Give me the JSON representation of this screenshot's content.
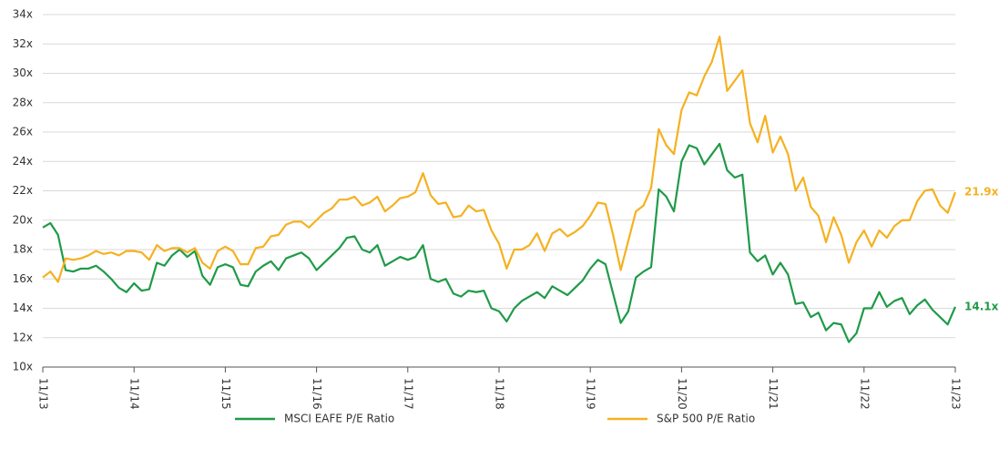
{
  "chart_data": {
    "type": "line",
    "categories": [
      "11/13",
      null,
      null,
      null,
      null,
      null,
      null,
      null,
      null,
      null,
      null,
      null,
      "11/14",
      null,
      null,
      null,
      null,
      null,
      null,
      null,
      null,
      null,
      null,
      null,
      "11/15",
      null,
      null,
      null,
      null,
      null,
      null,
      null,
      null,
      null,
      null,
      null,
      "11/16",
      null,
      null,
      null,
      null,
      null,
      null,
      null,
      null,
      null,
      null,
      null,
      "11/17",
      null,
      null,
      null,
      null,
      null,
      null,
      null,
      null,
      null,
      null,
      null,
      "11/18",
      null,
      null,
      null,
      null,
      null,
      null,
      null,
      null,
      null,
      null,
      null,
      "11/19",
      null,
      null,
      null,
      null,
      null,
      null,
      null,
      null,
      null,
      null,
      null,
      "11/20",
      null,
      null,
      null,
      null,
      null,
      null,
      null,
      null,
      null,
      null,
      null,
      "11/21",
      null,
      null,
      null,
      null,
      null,
      null,
      null,
      null,
      null,
      null,
      null,
      "11/22",
      null,
      null,
      null,
      null,
      null,
      null,
      null,
      null,
      null,
      null,
      null,
      "11/23"
    ],
    "series": [
      {
        "name": "MSCI EAFE P/E Ratio",
        "color": "#1f9a48",
        "values": [
          19.5,
          19.8,
          19.0,
          16.6,
          16.5,
          16.7,
          16.7,
          16.9,
          16.5,
          16.0,
          15.4,
          15.1,
          15.7,
          15.2,
          15.3,
          17.1,
          16.9,
          17.6,
          18.0,
          17.5,
          17.9,
          16.2,
          15.6,
          16.8,
          17.0,
          16.8,
          15.6,
          15.5,
          16.5,
          16.9,
          17.2,
          16.6,
          17.4,
          17.6,
          17.8,
          17.4,
          16.6,
          17.1,
          17.6,
          18.1,
          18.8,
          18.9,
          18.0,
          17.8,
          18.3,
          16.9,
          17.2,
          17.5,
          17.3,
          17.5,
          18.3,
          16.0,
          15.8,
          16.0,
          15.0,
          14.8,
          15.2,
          15.1,
          15.2,
          14.0,
          13.8,
          13.1,
          14.0,
          14.5,
          14.8,
          15.1,
          14.7,
          15.5,
          15.2,
          14.9,
          15.4,
          15.9,
          16.7,
          17.3,
          17.0,
          15.0,
          13.0,
          13.8,
          16.1,
          16.5,
          16.8,
          22.1,
          21.6,
          20.6,
          24.0,
          25.1,
          24.9,
          23.8,
          24.5,
          25.2,
          23.4,
          22.9,
          23.1,
          17.8,
          17.2,
          17.6,
          16.3,
          17.1,
          16.3,
          14.3,
          14.4,
          13.4,
          13.7,
          12.5,
          13.0,
          12.9,
          11.7,
          12.3,
          14.0,
          14.0,
          15.1,
          14.1,
          14.5,
          14.7,
          13.6,
          14.2,
          14.6,
          13.9,
          13.4,
          12.9,
          14.1
        ],
        "value_labels": [
          null,
          null,
          null,
          null,
          null,
          null,
          null,
          null,
          null,
          null,
          null,
          null,
          null,
          null,
          null,
          null,
          null,
          null,
          null,
          null,
          null,
          null,
          null,
          null,
          null,
          null,
          null,
          null,
          null,
          null,
          null,
          null,
          null,
          null,
          null,
          null,
          null,
          null,
          null,
          null,
          null,
          null,
          null,
          null,
          null,
          null,
          null,
          null,
          null,
          null,
          null,
          null,
          null,
          null,
          null,
          null,
          null,
          null,
          null,
          null,
          null,
          null,
          null,
          null,
          null,
          null,
          null,
          null,
          null,
          null,
          null,
          null,
          null,
          null,
          null,
          null,
          null,
          null,
          null,
          null,
          null,
          null,
          null,
          null,
          null,
          null,
          null,
          null,
          null,
          null,
          null,
          null,
          null,
          null,
          null,
          null,
          null,
          null,
          null,
          null,
          null,
          null,
          null,
          null,
          null,
          null,
          null,
          null,
          null,
          null,
          null,
          null,
          null,
          null,
          null,
          null,
          null,
          null,
          null,
          null,
          "14.1x"
        ]
      },
      {
        "name": "S&P 500 P/E Ratio",
        "color": "#f5b120",
        "values": [
          16.1,
          16.5,
          15.8,
          17.4,
          17.3,
          17.4,
          17.6,
          17.9,
          17.7,
          17.8,
          17.6,
          17.9,
          17.9,
          17.8,
          17.3,
          18.3,
          17.9,
          18.1,
          18.1,
          17.8,
          18.1,
          17.1,
          16.7,
          17.9,
          18.2,
          17.9,
          17.0,
          17.0,
          18.1,
          18.2,
          18.9,
          19.0,
          19.7,
          19.9,
          19.9,
          19.5,
          20.0,
          20.5,
          20.8,
          21.4,
          21.4,
          21.6,
          21.0,
          21.2,
          21.6,
          20.6,
          21.0,
          21.5,
          21.6,
          21.9,
          23.2,
          21.7,
          21.1,
          21.2,
          20.2,
          20.3,
          21.0,
          20.6,
          20.7,
          19.3,
          18.4,
          16.7,
          18.0,
          18.0,
          18.3,
          19.1,
          17.9,
          19.1,
          19.4,
          18.9,
          19.2,
          19.6,
          20.3,
          21.2,
          21.1,
          19.0,
          16.6,
          18.6,
          20.6,
          21.0,
          22.2,
          26.2,
          25.1,
          24.5,
          27.5,
          28.7,
          28.5,
          29.8,
          30.8,
          32.5,
          28.8,
          29.5,
          30.2,
          26.6,
          25.3,
          27.1,
          24.6,
          25.7,
          24.5,
          22.0,
          22.9,
          20.9,
          20.3,
          18.5,
          20.2,
          19.0,
          17.1,
          18.5,
          19.3,
          18.2,
          19.3,
          18.8,
          19.6,
          20.0,
          20.0,
          21.3,
          22.0,
          22.1,
          21.0,
          20.5,
          21.9
        ],
        "value_labels": [
          null,
          null,
          null,
          null,
          null,
          null,
          null,
          null,
          null,
          null,
          null,
          null,
          null,
          null,
          null,
          null,
          null,
          null,
          null,
          null,
          null,
          null,
          null,
          null,
          null,
          null,
          null,
          null,
          null,
          null,
          null,
          null,
          null,
          null,
          null,
          null,
          null,
          null,
          null,
          null,
          null,
          null,
          null,
          null,
          null,
          null,
          null,
          null,
          null,
          null,
          null,
          null,
          null,
          null,
          null,
          null,
          null,
          null,
          null,
          null,
          null,
          null,
          null,
          null,
          null,
          null,
          null,
          null,
          null,
          null,
          null,
          null,
          null,
          null,
          null,
          null,
          null,
          null,
          null,
          null,
          null,
          null,
          null,
          null,
          null,
          null,
          null,
          null,
          null,
          null,
          null,
          null,
          null,
          null,
          null,
          null,
          null,
          null,
          null,
          null,
          null,
          null,
          null,
          null,
          null,
          null,
          null,
          null,
          null,
          null,
          null,
          null,
          null,
          null,
          null,
          null,
          null,
          null,
          null,
          null,
          "21.9x"
        ]
      }
    ],
    "ylim": [
      10,
      34
    ],
    "yticks": [
      {
        "value": 10,
        "label": "10x"
      },
      {
        "value": 12,
        "label": "12x"
      },
      {
        "value": 14,
        "label": "14x"
      },
      {
        "value": 16,
        "label": "16x"
      },
      {
        "value": 18,
        "label": "18x"
      },
      {
        "value": 20,
        "label": "20x"
      },
      {
        "value": 22,
        "label": "22x"
      },
      {
        "value": 24,
        "label": "24x"
      },
      {
        "value": 26,
        "label": "26x"
      },
      {
        "value": 28,
        "label": "28x"
      },
      {
        "value": 30,
        "label": "30x"
      },
      {
        "value": 32,
        "label": "32x"
      },
      {
        "value": 34,
        "label": "34x"
      }
    ],
    "grid": true,
    "legend": "bottom"
  }
}
